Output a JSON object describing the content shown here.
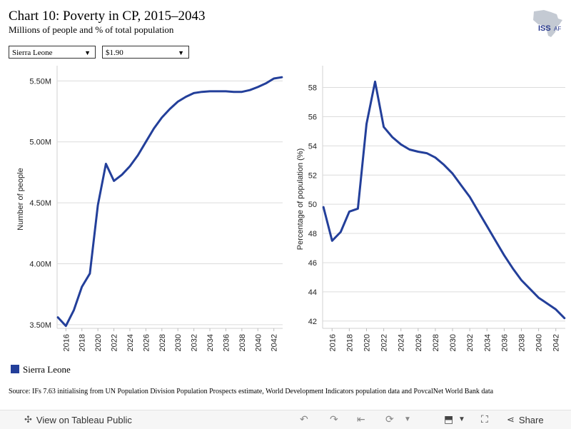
{
  "header": {
    "title": "Chart 10: Poverty in CP, 2015–2043",
    "subtitle": "Millions of people and % of total population",
    "logo_text": "ISS",
    "logo_suffix": "AF"
  },
  "filters": {
    "country": "Sierra Leone",
    "threshold": "$1.90"
  },
  "legend": {
    "label": "Sierra Leone",
    "color": "#233f9a"
  },
  "source": "Source: IFs 7.63 initialising from UN Population Division Population Prospects estimate, World Development Indicators population data and PovcalNet World Bank data",
  "footer": {
    "view_label": "View on Tableau Public",
    "share_label": "Share",
    "icons": [
      "tableau-icon",
      "undo-icon",
      "redo-icon",
      "revert-icon",
      "refresh-icon",
      "download-icon",
      "fullscreen-icon",
      "share-icon"
    ]
  },
  "chart_data": [
    {
      "type": "line",
      "ylabel": "Number of people",
      "xlabel": "",
      "ylim": [
        3.47,
        5.59
      ],
      "yticks": [
        3.5,
        4.0,
        4.5,
        5.0,
        5.5
      ],
      "ytick_labels": [
        "3.50M",
        "4.00M",
        "4.50M",
        "5.00M",
        "5.50M"
      ],
      "xticks": [
        2016,
        2018,
        2020,
        2022,
        2024,
        2026,
        2028,
        2030,
        2032,
        2034,
        2036,
        2038,
        2040,
        2042
      ],
      "grid": "horizontal",
      "series": [
        {
          "name": "Sierra Leone",
          "x": [
            2015,
            2016,
            2017,
            2018,
            2019,
            2020,
            2021,
            2022,
            2023,
            2024,
            2025,
            2026,
            2027,
            2028,
            2029,
            2030,
            2031,
            2032,
            2033,
            2034,
            2035,
            2036,
            2037,
            2038,
            2039,
            2040,
            2041,
            2042,
            2043
          ],
          "values": [
            3.56,
            3.49,
            3.62,
            3.81,
            3.92,
            4.48,
            4.82,
            4.68,
            4.73,
            4.8,
            4.89,
            5.0,
            5.11,
            5.2,
            5.27,
            5.33,
            5.37,
            5.4,
            5.41,
            5.415,
            5.415,
            5.415,
            5.41,
            5.41,
            5.425,
            5.45,
            5.48,
            5.52,
            5.53
          ]
        }
      ]
    },
    {
      "type": "line",
      "ylabel": "Percentage of population (%)",
      "xlabel": "",
      "ylim": [
        41.5,
        59.2
      ],
      "yticks": [
        42,
        44,
        46,
        48,
        50,
        52,
        54,
        56,
        58
      ],
      "ytick_labels": [
        "42",
        "44",
        "46",
        "48",
        "50",
        "52",
        "54",
        "56",
        "58"
      ],
      "xticks": [
        2016,
        2018,
        2020,
        2022,
        2024,
        2026,
        2028,
        2030,
        2032,
        2034,
        2036,
        2038,
        2040,
        2042
      ],
      "grid": "horizontal",
      "series": [
        {
          "name": "Sierra Leone",
          "x": [
            2015,
            2016,
            2017,
            2018,
            2019,
            2020,
            2021,
            2022,
            2023,
            2024,
            2025,
            2026,
            2027,
            2028,
            2029,
            2030,
            2031,
            2032,
            2033,
            2034,
            2035,
            2036,
            2037,
            2038,
            2039,
            2040,
            2041,
            2042,
            2043
          ],
          "values": [
            49.8,
            47.5,
            48.1,
            49.5,
            49.7,
            55.5,
            58.4,
            55.3,
            54.6,
            54.1,
            53.75,
            53.6,
            53.5,
            53.2,
            52.7,
            52.1,
            51.3,
            50.5,
            49.5,
            48.5,
            47.5,
            46.5,
            45.6,
            44.8,
            44.2,
            43.6,
            43.2,
            42.8,
            42.2
          ]
        }
      ]
    }
  ]
}
